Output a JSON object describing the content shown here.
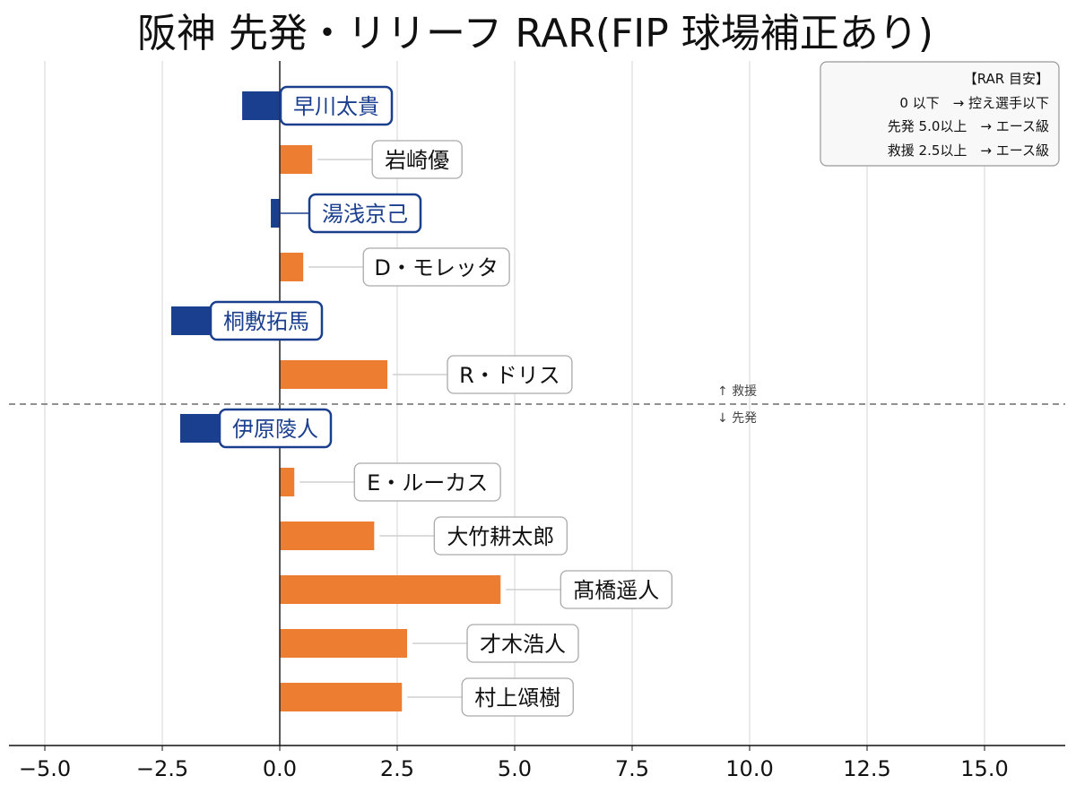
{
  "chart_data": {
    "type": "bar",
    "orientation": "horizontal",
    "title": "阪神 先発・リリーフ RAR(FIP 球場補正あり)",
    "xlabel": "",
    "ylabel": "",
    "xlim": [
      -5.76,
      16.72
    ],
    "xticks": [
      -5.0,
      -2.5,
      0.0,
      2.5,
      5.0,
      7.5,
      10.0,
      12.5,
      15.0
    ],
    "xtick_labels": [
      "−5.0",
      "−2.5",
      "0.0",
      "2.5",
      "5.0",
      "7.5",
      "10.0",
      "12.5",
      "15.0"
    ],
    "grid": "vertical",
    "colors": {
      "positive": "#ED7D31",
      "negative": "#1B3F8F",
      "label_border": "#AAAAAA",
      "divider": "#808080"
    },
    "series": [
      {
        "name": "早川太貴",
        "value": -0.8,
        "group": "救援"
      },
      {
        "name": "岩崎優",
        "value": 0.69,
        "group": "救援"
      },
      {
        "name": "湯浅京己",
        "value": -0.19,
        "group": "救援"
      },
      {
        "name": "D・モレッタ",
        "value": 0.5,
        "group": "救援"
      },
      {
        "name": "桐敷拓馬",
        "value": -2.31,
        "group": "救援"
      },
      {
        "name": "R・ドリス",
        "value": 2.29,
        "group": "救援"
      },
      {
        "name": "伊原陵人",
        "value": -2.12,
        "group": "先発"
      },
      {
        "name": "E・ルーカス",
        "value": 0.31,
        "group": "先発"
      },
      {
        "name": "大竹耕太郎",
        "value": 2.01,
        "group": "先発"
      },
      {
        "name": "髙橋遥人",
        "value": 4.7,
        "group": "先発"
      },
      {
        "name": "才木浩人",
        "value": 2.71,
        "group": "先発"
      },
      {
        "name": "村上頌樹",
        "value": 2.6,
        "group": "先発"
      }
    ],
    "divider": {
      "upper_label": "↑ 救援",
      "lower_label": "↓ 先発"
    },
    "legend": {
      "placement": "top-right",
      "lines": [
        "【RAR 目安】",
        "0 以下　→ 控え選手以下",
        "先発 5.0以上　→ エース級",
        "救援 2.5以上　→ エース級"
      ]
    }
  }
}
